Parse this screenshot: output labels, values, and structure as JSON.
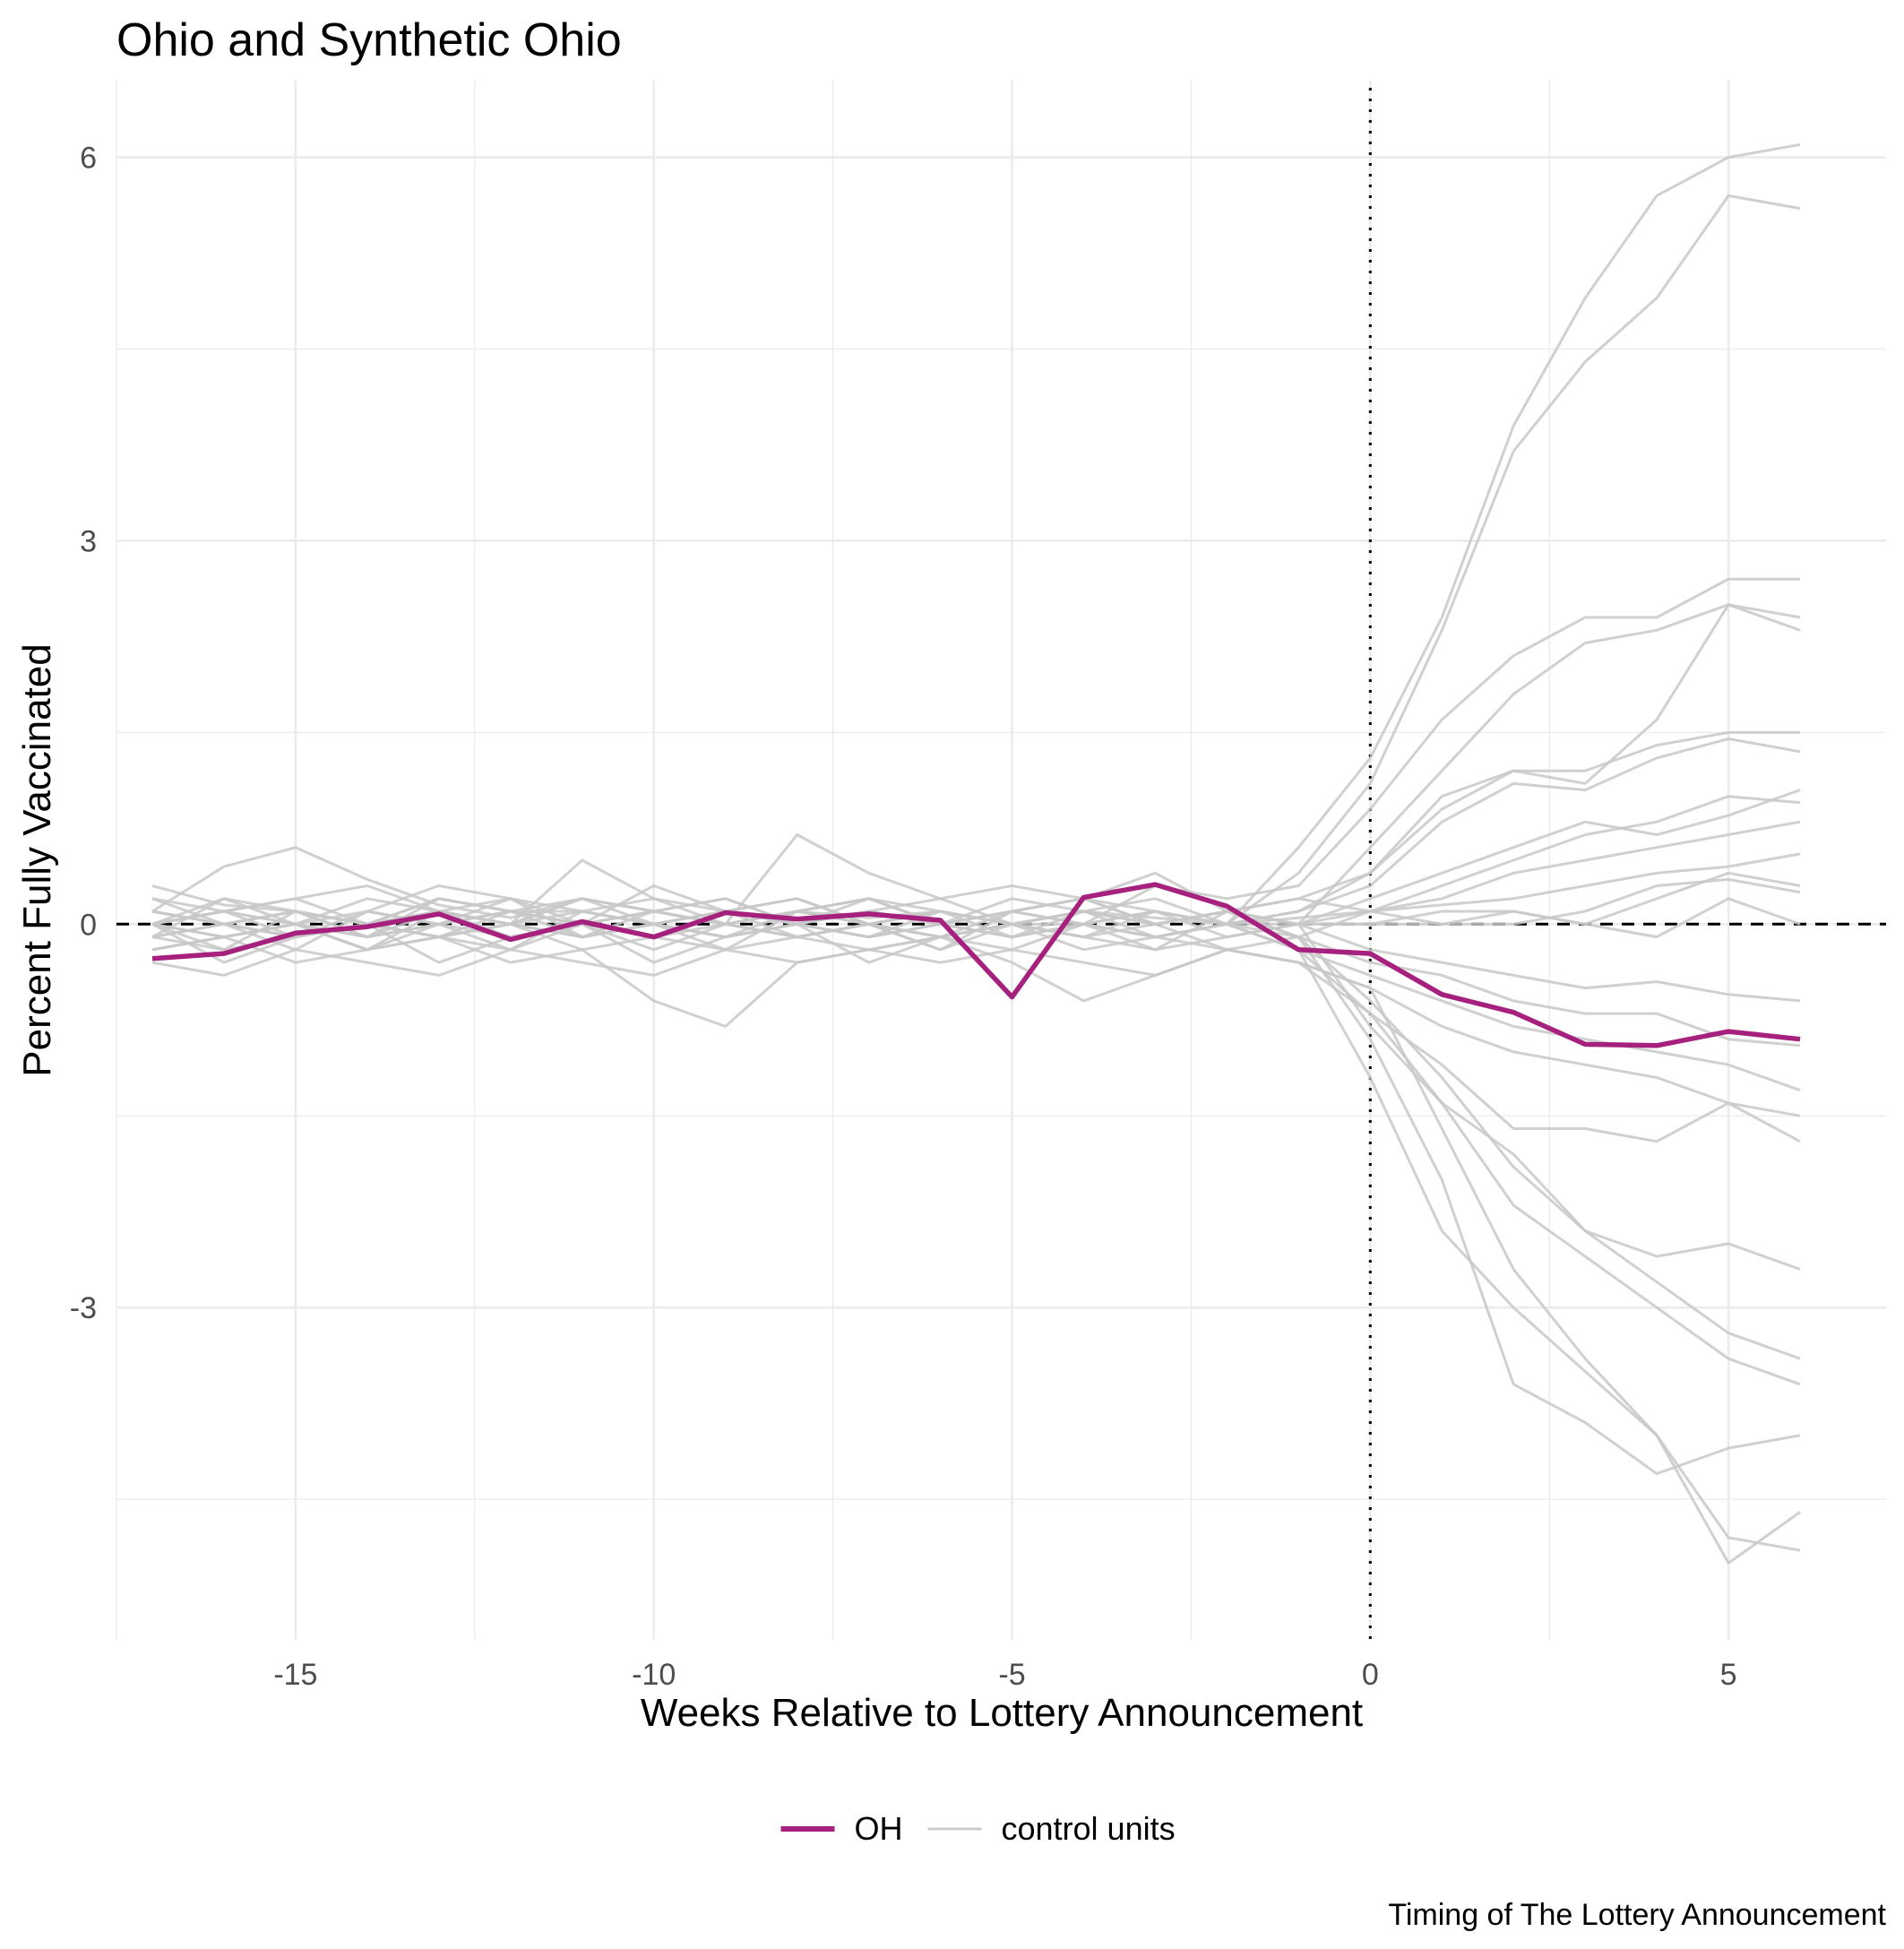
{
  "chart_data": {
    "type": "line",
    "title": "Ohio and Synthetic Ohio",
    "xlabel": "Weeks Relative to Lottery Announcement",
    "ylabel": "Percent Fully Vaccinated",
    "caption": "Timing of The Lottery Announcement",
    "xlim": [
      -17.5,
      7.2
    ],
    "ylim": [
      -5.6,
      6.6
    ],
    "x_ticks": [
      -15,
      -10,
      -5,
      0,
      5
    ],
    "x_tick_labels": [
      "-15",
      "-10",
      "-5",
      "0",
      "5"
    ],
    "y_ticks": [
      6,
      3,
      0,
      -3
    ],
    "y_tick_labels": [
      "6",
      "3",
      "0",
      "-3"
    ],
    "grid": true,
    "reference_lines": {
      "horizontal_dashed_y": 0,
      "vertical_dotted_x": 0
    },
    "legend": {
      "position": "bottom",
      "items": [
        {
          "label": "OH",
          "color": "#a6217e"
        },
        {
          "label": "control units",
          "color": "#cccccc"
        }
      ]
    },
    "colors": {
      "treated": "#a6217e",
      "control": "#c8c8c8",
      "reference": "#000000"
    },
    "x": [
      -17,
      -16,
      -15,
      -14,
      -13,
      -12,
      -11,
      -10,
      -9,
      -8,
      -7,
      -6,
      -5,
      -4,
      -3,
      -2,
      -1,
      0,
      1,
      2,
      3,
      4,
      5,
      6
    ],
    "series": [
      {
        "name": "OH",
        "role": "treated",
        "values": [
          -0.27,
          -0.23,
          -0.07,
          -0.02,
          0.08,
          -0.12,
          0.02,
          -0.1,
          0.09,
          0.04,
          0.08,
          0.03,
          -0.57,
          0.21,
          0.31,
          0.14,
          -0.2,
          -0.23,
          -0.55,
          -0.69,
          -0.94,
          -0.95,
          -0.84,
          -0.9
        ]
      },
      {
        "role": "control",
        "values": [
          0.1,
          0.45,
          0.6,
          0.35,
          0.15,
          0.05,
          0.2,
          0.1,
          0.0,
          0.1,
          0.05,
          0.1,
          0.0,
          0.1,
          0.05,
          0.0,
          0.6,
          1.3,
          2.4,
          3.9,
          4.9,
          5.7,
          6.0,
          6.1
        ]
      },
      {
        "role": "control",
        "values": [
          -0.1,
          0.2,
          0.1,
          0.0,
          0.2,
          0.1,
          0.1,
          0.2,
          0.1,
          0.0,
          -0.1,
          0.0,
          0.1,
          0.2,
          0.1,
          0.0,
          0.4,
          1.1,
          2.3,
          3.7,
          4.4,
          4.9,
          5.7,
          5.6
        ]
      },
      {
        "role": "control",
        "values": [
          0.0,
          0.1,
          -0.1,
          0.1,
          0.3,
          0.2,
          -0.1,
          0.0,
          0.1,
          0.2,
          0.0,
          -0.1,
          0.1,
          0.0,
          0.3,
          0.2,
          0.3,
          0.9,
          1.6,
          2.1,
          2.4,
          2.4,
          2.7,
          2.7
        ]
      },
      {
        "role": "control",
        "values": [
          0.2,
          0.0,
          0.1,
          -0.1,
          0.0,
          0.1,
          0.2,
          0.0,
          -0.1,
          0.1,
          0.2,
          0.0,
          -0.1,
          0.1,
          0.0,
          0.1,
          0.0,
          0.6,
          1.2,
          1.8,
          2.2,
          2.3,
          2.5,
          2.4
        ]
      },
      {
        "role": "control",
        "values": [
          -0.2,
          -0.1,
          0.0,
          -0.2,
          0.1,
          0.0,
          -0.1,
          0.1,
          0.0,
          -0.1,
          0.0,
          0.1,
          0.0,
          -0.1,
          0.1,
          0.0,
          0.1,
          0.4,
          0.9,
          1.2,
          1.1,
          1.6,
          2.5,
          2.3
        ]
      },
      {
        "role": "control",
        "values": [
          0.1,
          0.0,
          -0.1,
          0.0,
          0.1,
          -0.1,
          0.0,
          0.1,
          0.2,
          0.0,
          0.1,
          0.0,
          0.2,
          0.1,
          0.0,
          0.1,
          0.2,
          0.4,
          1.0,
          1.2,
          1.2,
          1.4,
          1.5,
          1.5
        ]
      },
      {
        "role": "control",
        "values": [
          0.0,
          -0.2,
          0.1,
          0.0,
          -0.1,
          0.1,
          0.0,
          -0.1,
          0.1,
          0.0,
          -0.1,
          0.1,
          0.0,
          0.1,
          -0.1,
          0.0,
          0.1,
          0.3,
          0.8,
          1.1,
          1.05,
          1.3,
          1.45,
          1.35
        ]
      },
      {
        "role": "control",
        "values": [
          0.0,
          0.1,
          0.0,
          0.1,
          0.0,
          0.2,
          0.1,
          0.0,
          0.1,
          0.2,
          0.0,
          0.1,
          0.0,
          0.0,
          0.1,
          0.0,
          0.0,
          0.1,
          0.3,
          0.5,
          0.7,
          0.8,
          1.0,
          0.95
        ]
      },
      {
        "role": "control",
        "values": [
          -0.1,
          0.0,
          0.1,
          -0.1,
          0.0,
          0.1,
          -0.1,
          0.0,
          0.1,
          -0.1,
          0.0,
          0.1,
          -0.1,
          0.0,
          0.1,
          -0.1,
          0.0,
          0.2,
          0.4,
          0.6,
          0.8,
          0.7,
          0.85,
          1.05
        ]
      },
      {
        "role": "control",
        "values": [
          0.3,
          0.15,
          0.1,
          0.0,
          0.2,
          0.1,
          0.0,
          0.1,
          0.0,
          0.1,
          0.2,
          0.1,
          0.0,
          0.1,
          0.2,
          0.0,
          -0.1,
          0.1,
          0.2,
          0.4,
          0.5,
          0.6,
          0.7,
          0.8
        ]
      },
      {
        "role": "control",
        "values": [
          0.0,
          -0.1,
          0.0,
          -0.1,
          0.1,
          0.0,
          -0.1,
          0.0,
          0.1,
          0.0,
          -0.1,
          0.0,
          0.1,
          0.0,
          -0.1,
          0.0,
          0.05,
          0.1,
          0.15,
          0.2,
          0.3,
          0.4,
          0.45,
          0.55
        ]
      },
      {
        "role": "control",
        "values": [
          0.1,
          0.0,
          -0.1,
          0.0,
          0.1,
          0.0,
          0.2,
          0.1,
          0.0,
          0.1,
          0.0,
          -0.1,
          0.0,
          0.1,
          0.0,
          0.1,
          0.0,
          0.0,
          0.1,
          0.1,
          0.0,
          0.2,
          0.4,
          0.3
        ]
      },
      {
        "role": "control",
        "values": [
          -0.2,
          -0.1,
          0.0,
          -0.2,
          -0.1,
          0.0,
          -0.2,
          -0.1,
          0.0,
          -0.1,
          -0.2,
          -0.1,
          0.0,
          -0.1,
          -0.2,
          -0.1,
          0.0,
          0.0,
          0.0,
          0.0,
          0.1,
          0.3,
          0.35,
          0.25
        ]
      },
      {
        "role": "control",
        "values": [
          0.0,
          0.2,
          0.0,
          -0.1,
          0.2,
          0.1,
          0.0,
          0.3,
          0.1,
          0.0,
          0.2,
          0.0,
          0.1,
          0.2,
          0.0,
          0.1,
          0.0,
          -0.2,
          -0.3,
          -0.4,
          -0.5,
          -0.45,
          -0.55,
          -0.6
        ]
      },
      {
        "role": "control",
        "values": [
          -0.1,
          -0.2,
          -0.1,
          0.0,
          -0.1,
          -0.2,
          0.0,
          -0.1,
          -0.2,
          -0.1,
          0.0,
          -0.1,
          -0.2,
          0.0,
          -0.1,
          -0.2,
          -0.1,
          -0.3,
          -0.4,
          -0.6,
          -0.7,
          -0.7,
          -0.9,
          -0.95
        ]
      },
      {
        "role": "control",
        "values": [
          0.1,
          0.0,
          0.1,
          0.0,
          -0.1,
          0.0,
          0.1,
          0.0,
          -0.1,
          0.0,
          0.1,
          0.0,
          -0.1,
          0.0,
          0.1,
          0.0,
          -0.2,
          -0.4,
          -0.6,
          -0.8,
          -0.9,
          -1.0,
          -1.1,
          -1.3
        ]
      },
      {
        "role": "control",
        "values": [
          0.0,
          -0.1,
          0.0,
          -0.2,
          0.0,
          -0.1,
          0.0,
          -0.2,
          0.0,
          -0.1,
          0.0,
          -0.2,
          0.0,
          -0.1,
          0.0,
          -0.2,
          -0.3,
          -0.5,
          -0.8,
          -1.0,
          -1.1,
          -1.2,
          -1.4,
          -1.5
        ]
      },
      {
        "role": "control",
        "values": [
          -0.3,
          -0.4,
          -0.2,
          -0.3,
          -0.4,
          -0.2,
          -0.3,
          -0.4,
          -0.2,
          -0.3,
          -0.2,
          -0.3,
          -0.2,
          -0.3,
          -0.4,
          -0.2,
          -0.3,
          -0.7,
          -1.1,
          -1.6,
          -1.6,
          -1.7,
          -1.4,
          -1.7
        ]
      },
      {
        "role": "control",
        "values": [
          0.2,
          0.1,
          0.0,
          0.2,
          0.1,
          0.0,
          0.2,
          0.1,
          0.0,
          0.1,
          0.2,
          0.0,
          0.1,
          0.2,
          0.0,
          0.1,
          0.0,
          -0.8,
          -1.4,
          -1.8,
          -2.4,
          -2.6,
          -2.5,
          -2.7
        ]
      },
      {
        "role": "control",
        "values": [
          0.0,
          0.1,
          0.2,
          0.0,
          0.1,
          0.2,
          0.0,
          0.1,
          0.2,
          0.0,
          0.1,
          0.2,
          0.0,
          0.1,
          0.0,
          0.1,
          -0.1,
          -0.6,
          -1.2,
          -1.9,
          -2.4,
          -2.8,
          -3.2,
          -3.4
        ]
      },
      {
        "role": "control",
        "values": [
          -0.1,
          0.0,
          -0.1,
          0.0,
          -0.1,
          0.0,
          -0.1,
          0.0,
          -0.1,
          0.0,
          -0.1,
          0.0,
          -0.1,
          0.0,
          -0.1,
          0.0,
          -0.2,
          -0.7,
          -1.4,
          -2.2,
          -2.6,
          -3.0,
          -3.4,
          -3.6
        ]
      },
      {
        "role": "control",
        "values": [
          0.0,
          -0.3,
          -0.1,
          0.0,
          -0.3,
          -0.1,
          0.0,
          -0.3,
          -0.1,
          0.0,
          -0.3,
          -0.1,
          0.0,
          -0.2,
          -0.1,
          0.0,
          -0.2,
          -1.2,
          -2.4,
          -3.0,
          -3.5,
          -4.0,
          -4.8,
          -4.9
        ]
      },
      {
        "role": "control",
        "values": [
          0.1,
          0.0,
          -0.2,
          0.1,
          0.0,
          -0.2,
          0.1,
          0.0,
          -0.2,
          0.1,
          0.0,
          -0.2,
          0.1,
          0.0,
          -0.2,
          0.1,
          -0.1,
          -0.9,
          -2.0,
          -3.6,
          -3.9,
          -4.3,
          -4.1,
          -4.0
        ]
      },
      {
        "role": "control",
        "values": [
          -0.2,
          -0.1,
          -0.3,
          -0.2,
          -0.1,
          -0.3,
          -0.2,
          -0.6,
          -0.8,
          -0.3,
          -0.2,
          -0.1,
          -0.3,
          -0.6,
          -0.4,
          -0.2,
          -0.3,
          -0.5,
          -1.6,
          -2.7,
          -3.4,
          -4.0,
          -5.0,
          -4.6
        ]
      },
      {
        "role": "control",
        "values": [
          0.0,
          0.1,
          0.2,
          0.3,
          0.1,
          0.0,
          0.5,
          0.2,
          0.0,
          0.7,
          0.4,
          0.2,
          0.3,
          0.2,
          0.4,
          0.1,
          0.2,
          0.1,
          0.0,
          0.1,
          0.0,
          -0.1,
          0.2,
          0.0
        ]
      }
    ]
  }
}
